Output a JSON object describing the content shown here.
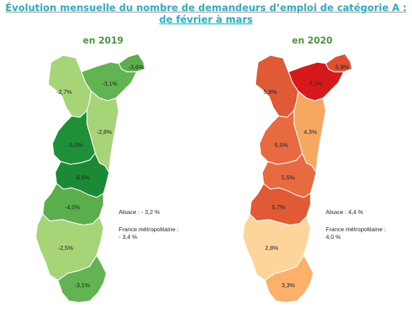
{
  "title_line1": "Évolution mensuelle du nombre de demandeurs d’emploi de catégorie A :",
  "title_line2": "de février à mars",
  "map2019": {
    "year": "en 2019",
    "regions": [
      {
        "id": "wissembourg",
        "label": "-3,6%",
        "color": "#5aae4c"
      },
      {
        "id": "haguenau",
        "label": "-3,1%",
        "color": "#62b452"
      },
      {
        "id": "saverne",
        "label": "-2,7%",
        "color": "#a6d477"
      },
      {
        "id": "strasbourg",
        "label": "-2,8%",
        "color": "#a6d477"
      },
      {
        "id": "molsheim",
        "label": "-5,0%",
        "color": "#1f8f3a"
      },
      {
        "id": "selestat",
        "label": "-6,6%",
        "color": "#1a8a36"
      },
      {
        "id": "colmar",
        "label": "-4,0%",
        "color": "#5aae4c"
      },
      {
        "id": "mulhouse",
        "label": "-2,5%",
        "color": "#a6d477"
      },
      {
        "id": "altkirch",
        "label": "-3,1%",
        "color": "#62b452"
      }
    ],
    "alsace": "Alsace : - 3,2 %",
    "france_line1": "France métropolitaine :",
    "france_line2": "- 3,4 %"
  },
  "map2020": {
    "year": "en 2020",
    "regions": [
      {
        "id": "wissembourg",
        "label": "5,9%",
        "color": "#e05030"
      },
      {
        "id": "haguenau",
        "label": "7,1%",
        "color": "#d7191c"
      },
      {
        "id": "saverne",
        "label": "5,8%",
        "color": "#e05a35"
      },
      {
        "id": "strasbourg",
        "label": "4,3%",
        "color": "#f7a860"
      },
      {
        "id": "molsheim",
        "label": "5,5%",
        "color": "#e86a40"
      },
      {
        "id": "selestat",
        "label": "5,5%",
        "color": "#e86a40"
      },
      {
        "id": "colmar",
        "label": "5,7%",
        "color": "#e05a35"
      },
      {
        "id": "mulhouse",
        "label": "2,8%",
        "color": "#fdd49a"
      },
      {
        "id": "altkirch",
        "label": "3,3%",
        "color": "#fdb06a"
      }
    ],
    "alsace": "Alsace : 4,4 %",
    "france_line1": "France métropolitaine :",
    "france_line2": "4,0 %"
  }
}
